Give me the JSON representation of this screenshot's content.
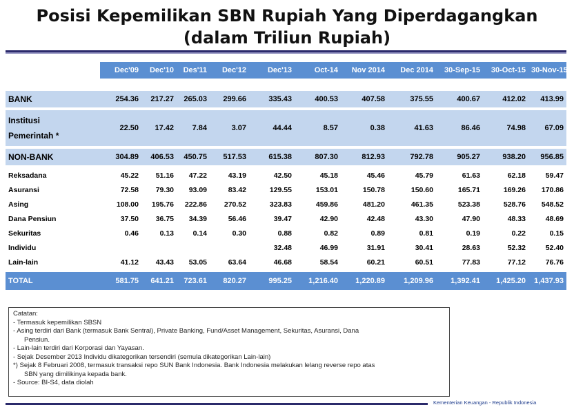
{
  "title_line1": "Posisi Kepemilikan SBN Rupiah Yang Diperdagangkan",
  "title_line2": "(dalam Triliun Rupiah)",
  "columns": [
    "Dec'09",
    "Dec'10",
    "Des'11",
    "Dec'12",
    "Dec'13",
    "Oct-14",
    "Nov 2014",
    "Dec 2014",
    "30-Sep-15",
    "30-Oct-15",
    "30-Nov-15"
  ],
  "rows": {
    "bank": {
      "label": "BANK",
      "values": [
        "254.36",
        "217.27",
        "265.03",
        "299.66",
        "335.43",
        "400.53",
        "407.58",
        "375.55",
        "400.67",
        "412.02",
        "413.99"
      ]
    },
    "institusi": {
      "label1": "Institusi",
      "label2": "Pemerintah *",
      "values": [
        "22.50",
        "17.42",
        "7.84",
        "3.07",
        "44.44",
        "8.57",
        "0.38",
        "41.63",
        "86.46",
        "74.98",
        "67.09"
      ]
    },
    "nonbank": {
      "label": "NON-BANK",
      "values": [
        "304.89",
        "406.53",
        "450.75",
        "517.53",
        "615.38",
        "807.30",
        "812.93",
        "792.78",
        "905.27",
        "938.20",
        "956.85"
      ]
    },
    "subs": [
      {
        "label": "Reksadana",
        "values": [
          "45.22",
          "51.16",
          "47.22",
          "43.19",
          "42.50",
          "45.18",
          "45.46",
          "45.79",
          "61.63",
          "62.18",
          "59.47"
        ]
      },
      {
        "label": "Asuransi",
        "values": [
          "72.58",
          "79.30",
          "93.09",
          "83.42",
          "129.55",
          "153.01",
          "150.78",
          "150.60",
          "165.71",
          "169.26",
          "170.86"
        ]
      },
      {
        "label": "Asing",
        "values": [
          "108.00",
          "195.76",
          "222.86",
          "270.52",
          "323.83",
          "459.86",
          "481.20",
          "461.35",
          "523.38",
          "528.76",
          "548.52"
        ]
      },
      {
        "label": "Dana Pensiun",
        "values": [
          "37.50",
          "36.75",
          "34.39",
          "56.46",
          "39.47",
          "42.90",
          "42.48",
          "43.30",
          "47.90",
          "48.33",
          "48.69"
        ]
      },
      {
        "label": "Sekuritas",
        "values": [
          "0.46",
          "0.13",
          "0.14",
          "0.30",
          "0.88",
          "0.82",
          "0.89",
          "0.81",
          "0.19",
          "0.22",
          "0.15"
        ]
      },
      {
        "label": "Individu",
        "values": [
          "",
          "",
          "",
          "",
          "32.48",
          "46.99",
          "31.91",
          "30.41",
          "28.63",
          "52.32",
          "52.40"
        ]
      },
      {
        "label": "Lain-lain",
        "values": [
          "41.12",
          "43.43",
          "53.05",
          "63.64",
          "46.68",
          "58.54",
          "60.21",
          "60.51",
          "77.83",
          "77.12",
          "76.76"
        ]
      }
    ],
    "total": {
      "label": "TOTAL",
      "values": [
        "581.75",
        "641.21",
        "723.61",
        "820.27",
        "995.25",
        "1,216.40",
        "1,220.89",
        "1,209.96",
        "1,392.41",
        "1,425.20",
        "1,437.93"
      ]
    }
  },
  "notes": {
    "heading": "Catatan:",
    "n1": "-  Termasuk kepemilikan SBSN",
    "n2a": "-  Asing terdiri dari Bank (termasuk Bank Sentral), Private Banking, Fund/Asset Management, Sekuritas, Asuransi, Dana",
    "n2b": "Pensiun.",
    "n3": "-  Lain-lain terdiri dari Korporasi dan Yayasan.",
    "n4": "-   Sejak Desember 2013 Individu dikategorikan tersendiri (semula dikategorikan Lain-lain)",
    "n5a": "*) Sejak 8 Februari 2008, termasuk transaksi repo SUN Bank Indonesia. Bank Indonesia melakukan lelang reverse repo atas",
    "n5b": "SBN yang dimilikinya kepada bank.",
    "n6": "-  Source: BI-S4, data diolah"
  },
  "footer": "Kementerian Keuangan - Republik Indonesia"
}
